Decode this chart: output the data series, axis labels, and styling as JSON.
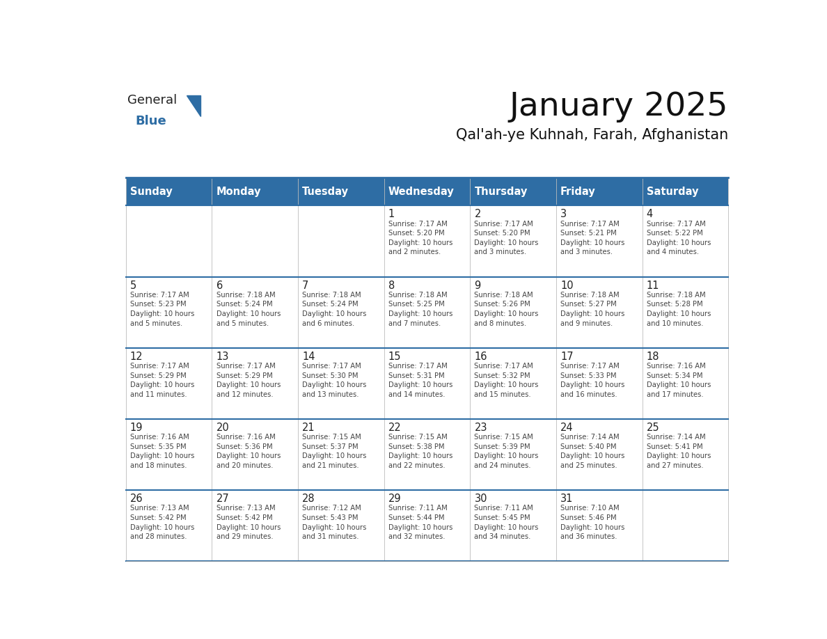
{
  "title": "January 2025",
  "subtitle": "Qal'ah-ye Kuhnah, Farah, Afghanistan",
  "header_color": "#2e6da4",
  "header_text_color": "#ffffff",
  "cell_bg_color": "#ffffff",
  "border_color": "#2e6da4",
  "text_color": "#333333",
  "days_of_week": [
    "Sunday",
    "Monday",
    "Tuesday",
    "Wednesday",
    "Thursday",
    "Friday",
    "Saturday"
  ],
  "weeks": [
    [
      {
        "day": "",
        "info": ""
      },
      {
        "day": "",
        "info": ""
      },
      {
        "day": "",
        "info": ""
      },
      {
        "day": "1",
        "info": "Sunrise: 7:17 AM\nSunset: 5:20 PM\nDaylight: 10 hours\nand 2 minutes."
      },
      {
        "day": "2",
        "info": "Sunrise: 7:17 AM\nSunset: 5:20 PM\nDaylight: 10 hours\nand 3 minutes."
      },
      {
        "day": "3",
        "info": "Sunrise: 7:17 AM\nSunset: 5:21 PM\nDaylight: 10 hours\nand 3 minutes."
      },
      {
        "day": "4",
        "info": "Sunrise: 7:17 AM\nSunset: 5:22 PM\nDaylight: 10 hours\nand 4 minutes."
      }
    ],
    [
      {
        "day": "5",
        "info": "Sunrise: 7:17 AM\nSunset: 5:23 PM\nDaylight: 10 hours\nand 5 minutes."
      },
      {
        "day": "6",
        "info": "Sunrise: 7:18 AM\nSunset: 5:24 PM\nDaylight: 10 hours\nand 5 minutes."
      },
      {
        "day": "7",
        "info": "Sunrise: 7:18 AM\nSunset: 5:24 PM\nDaylight: 10 hours\nand 6 minutes."
      },
      {
        "day": "8",
        "info": "Sunrise: 7:18 AM\nSunset: 5:25 PM\nDaylight: 10 hours\nand 7 minutes."
      },
      {
        "day": "9",
        "info": "Sunrise: 7:18 AM\nSunset: 5:26 PM\nDaylight: 10 hours\nand 8 minutes."
      },
      {
        "day": "10",
        "info": "Sunrise: 7:18 AM\nSunset: 5:27 PM\nDaylight: 10 hours\nand 9 minutes."
      },
      {
        "day": "11",
        "info": "Sunrise: 7:18 AM\nSunset: 5:28 PM\nDaylight: 10 hours\nand 10 minutes."
      }
    ],
    [
      {
        "day": "12",
        "info": "Sunrise: 7:17 AM\nSunset: 5:29 PM\nDaylight: 10 hours\nand 11 minutes."
      },
      {
        "day": "13",
        "info": "Sunrise: 7:17 AM\nSunset: 5:29 PM\nDaylight: 10 hours\nand 12 minutes."
      },
      {
        "day": "14",
        "info": "Sunrise: 7:17 AM\nSunset: 5:30 PM\nDaylight: 10 hours\nand 13 minutes."
      },
      {
        "day": "15",
        "info": "Sunrise: 7:17 AM\nSunset: 5:31 PM\nDaylight: 10 hours\nand 14 minutes."
      },
      {
        "day": "16",
        "info": "Sunrise: 7:17 AM\nSunset: 5:32 PM\nDaylight: 10 hours\nand 15 minutes."
      },
      {
        "day": "17",
        "info": "Sunrise: 7:17 AM\nSunset: 5:33 PM\nDaylight: 10 hours\nand 16 minutes."
      },
      {
        "day": "18",
        "info": "Sunrise: 7:16 AM\nSunset: 5:34 PM\nDaylight: 10 hours\nand 17 minutes."
      }
    ],
    [
      {
        "day": "19",
        "info": "Sunrise: 7:16 AM\nSunset: 5:35 PM\nDaylight: 10 hours\nand 18 minutes."
      },
      {
        "day": "20",
        "info": "Sunrise: 7:16 AM\nSunset: 5:36 PM\nDaylight: 10 hours\nand 20 minutes."
      },
      {
        "day": "21",
        "info": "Sunrise: 7:15 AM\nSunset: 5:37 PM\nDaylight: 10 hours\nand 21 minutes."
      },
      {
        "day": "22",
        "info": "Sunrise: 7:15 AM\nSunset: 5:38 PM\nDaylight: 10 hours\nand 22 minutes."
      },
      {
        "day": "23",
        "info": "Sunrise: 7:15 AM\nSunset: 5:39 PM\nDaylight: 10 hours\nand 24 minutes."
      },
      {
        "day": "24",
        "info": "Sunrise: 7:14 AM\nSunset: 5:40 PM\nDaylight: 10 hours\nand 25 minutes."
      },
      {
        "day": "25",
        "info": "Sunrise: 7:14 AM\nSunset: 5:41 PM\nDaylight: 10 hours\nand 27 minutes."
      }
    ],
    [
      {
        "day": "26",
        "info": "Sunrise: 7:13 AM\nSunset: 5:42 PM\nDaylight: 10 hours\nand 28 minutes."
      },
      {
        "day": "27",
        "info": "Sunrise: 7:13 AM\nSunset: 5:42 PM\nDaylight: 10 hours\nand 29 minutes."
      },
      {
        "day": "28",
        "info": "Sunrise: 7:12 AM\nSunset: 5:43 PM\nDaylight: 10 hours\nand 31 minutes."
      },
      {
        "day": "29",
        "info": "Sunrise: 7:11 AM\nSunset: 5:44 PM\nDaylight: 10 hours\nand 32 minutes."
      },
      {
        "day": "30",
        "info": "Sunrise: 7:11 AM\nSunset: 5:45 PM\nDaylight: 10 hours\nand 34 minutes."
      },
      {
        "day": "31",
        "info": "Sunrise: 7:10 AM\nSunset: 5:46 PM\nDaylight: 10 hours\nand 36 minutes."
      },
      {
        "day": "",
        "info": ""
      }
    ]
  ],
  "logo_text_general": "General",
  "logo_text_blue": "Blue",
  "logo_color_general": "#222222",
  "logo_color_blue": "#2e6da4",
  "logo_triangle_color": "#2e6da4"
}
